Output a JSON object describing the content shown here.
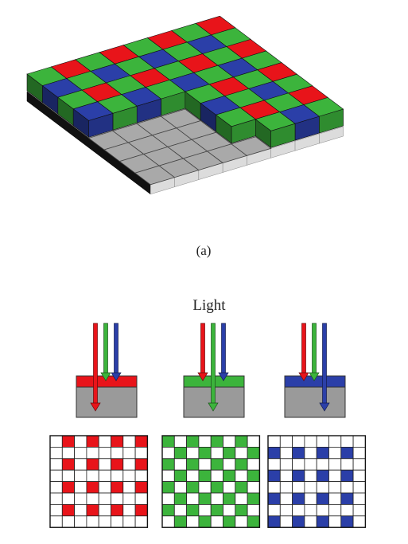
{
  "figure": {
    "caption_a": "(a)",
    "light_label": "Light"
  },
  "colors": {
    "red": "#e8141a",
    "green": "#3cb43c",
    "blue": "#2b3fa8",
    "gray": "#9a9a9a",
    "white": "#ffffff"
  },
  "bayer_pattern": [
    [
      "green",
      "red"
    ],
    [
      "blue",
      "green"
    ]
  ],
  "filter_panels": [
    {
      "name": "red",
      "filter_color": "red",
      "transmitted": "red",
      "mask": "red"
    },
    {
      "name": "green",
      "filter_color": "green",
      "transmitted": "green",
      "mask": "green"
    },
    {
      "name": "blue",
      "filter_color": "blue",
      "transmitted": "blue",
      "mask": "blue"
    }
  ]
}
